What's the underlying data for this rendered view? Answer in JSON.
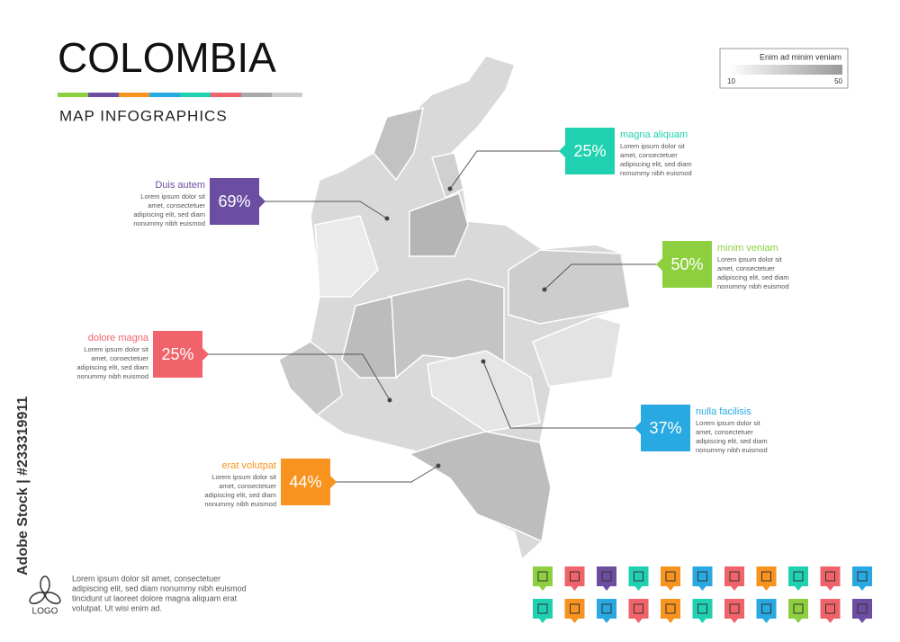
{
  "header": {
    "title": "COLOMBIA",
    "subtitle": "MAP INFOGRAPHICS"
  },
  "legend": {
    "title": "Enim ad minim veniam",
    "min": 10,
    "max": 50
  },
  "callouts": [
    {
      "title": "Duis autem",
      "value": "69%",
      "lines": [
        "Lorem ipsum dolor sit",
        "amet, consectetuer",
        "adipiscing elit, sed diam",
        "nonummy nibh euismod"
      ]
    },
    {
      "title": "dolore magna",
      "value": "25%",
      "lines": [
        "Lorem ipsum dolor sit",
        "amet, consectetuer",
        "adipiscing elit, sed diam",
        "nonummy nibh euismod"
      ]
    },
    {
      "title": "erat volutpat",
      "value": "44%",
      "lines": [
        "Lorem ipsum dolor sit",
        "amet, consectetuer",
        "adipiscing elit, sed diam",
        "nonummy nibh euismod"
      ]
    },
    {
      "title": "magna aliquam",
      "value": "25%",
      "lines": [
        "Lorem ipsum dolor sit",
        "amet, consectetuer",
        "adipiscing elit, sed diam",
        "nonummy nibh euismod"
      ]
    },
    {
      "title": "minim veniam",
      "value": "50%",
      "lines": [
        "Lorem ipsum dolor sit",
        "amet, consectetuer",
        "adipiscing elit, sed diam",
        "nonummy nibh euismod"
      ]
    },
    {
      "title": "nulla facilisis",
      "value": "37%",
      "lines": [
        "Lorem ipsum dolor sit",
        "amet, consectetuer",
        "adipiscing elit, sed diam",
        "nonummy nibh euismod"
      ]
    }
  ],
  "footer": {
    "lines": [
      "Lorem ipsum dolor sit amet, consectetuer",
      "adipiscing elit, sed diam nonummy nibh euismod",
      "tincidunt ut laoreet dolore magna aliquam erat",
      "volutpat. Ut wisi enim ad."
    ],
    "logo": "LOGO"
  },
  "watermark": "Adobe Stock | #233319911"
}
